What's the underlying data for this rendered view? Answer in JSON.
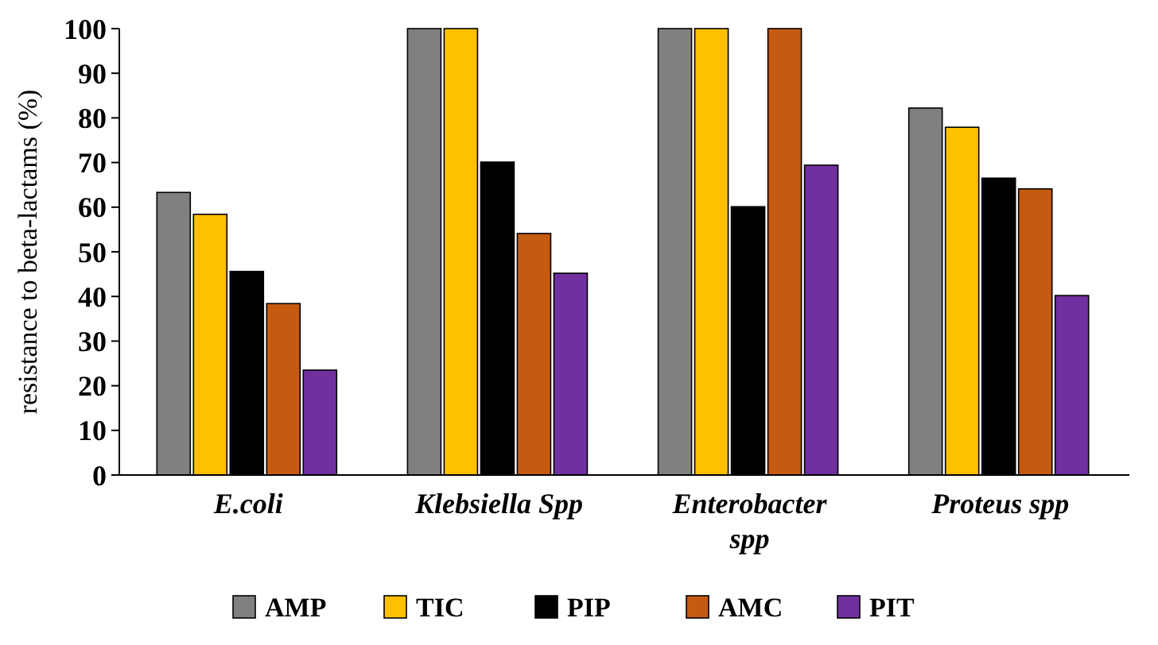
{
  "chart_data": {
    "type": "bar",
    "ylabel": "resistance to beta-lactams (%)",
    "categories": [
      "E.coli",
      "Klebsiella Spp",
      "Enterobacter spp",
      "Proteus spp"
    ],
    "series": [
      {
        "name": "AMP",
        "color": "#808080",
        "values": [
          63.3,
          100,
          100,
          82.2
        ]
      },
      {
        "name": "TIC",
        "color": "#ffc000",
        "values": [
          58.4,
          100,
          100,
          77.9
        ]
      },
      {
        "name": "PIP",
        "color": "#000000",
        "values": [
          45.6,
          70.1,
          60.1,
          66.5
        ]
      },
      {
        "name": "AMC",
        "color": "#c55a11",
        "values": [
          38.4,
          54.1,
          100,
          64.1
        ]
      },
      {
        "name": "PIT",
        "color": "#7030a0",
        "values": [
          23.5,
          45.2,
          69.4,
          40.2
        ]
      }
    ],
    "ylim": [
      0,
      100
    ],
    "yticks": [
      0,
      10,
      20,
      30,
      40,
      50,
      60,
      70,
      80,
      90,
      100
    ],
    "grid": false,
    "legend": "bottom"
  }
}
